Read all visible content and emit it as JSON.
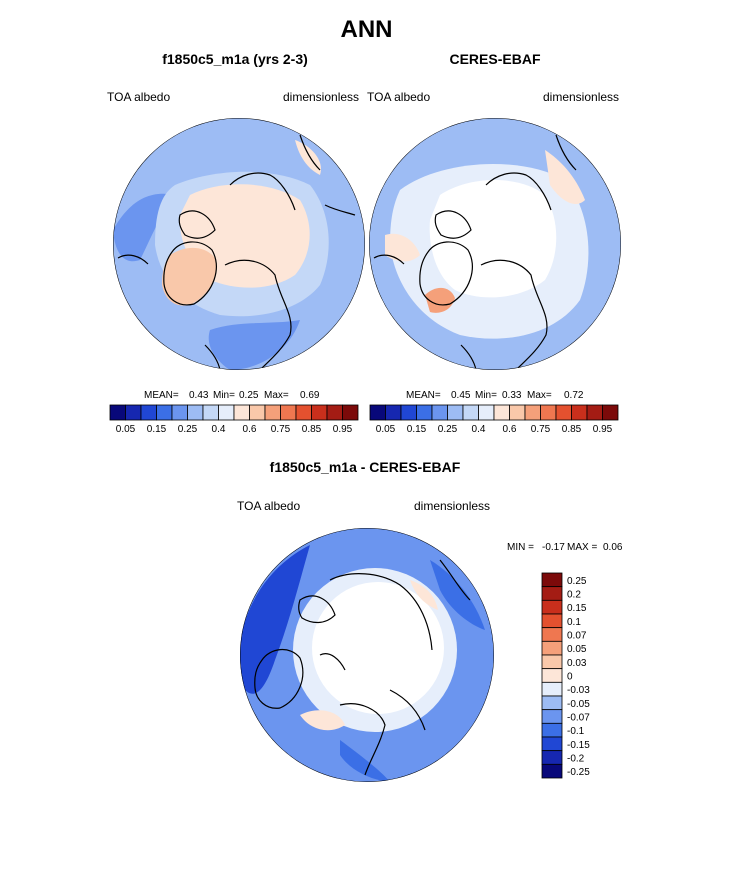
{
  "page": {
    "main_title": "ANN"
  },
  "chart_data": [
    {
      "type": "heatmap",
      "projection": "polar-stereographic",
      "title": "f1850c5_m1a (yrs 2-3)",
      "left_label": "TOA albedo",
      "right_label": "dimensionless",
      "stats": {
        "mean_label": "MEAN=",
        "mean": "0.43",
        "min_label": "Min=",
        "min": "0.25",
        "max_label": "Max=",
        "max": "0.69"
      },
      "colorbar": {
        "orientation": "horizontal",
        "tick_labels": [
          "0.05",
          "0.15",
          "0.25",
          "0.4",
          "0.6",
          "0.75",
          "0.85",
          "0.95"
        ],
        "colors": [
          "#08087a",
          "#1627b0",
          "#2047d4",
          "#3b6fe6",
          "#6b95ef",
          "#9dbcf4",
          "#c4d8f7",
          "#e6eefb",
          "#fde6d8",
          "#f9c8aa",
          "#f5a07a",
          "#ef7750",
          "#e4512f",
          "#c92f1c",
          "#a41c14",
          "#7c0a0a"
        ]
      },
      "field": {
        "ocean_color": "#9dbcf4",
        "arctic_color": "#fde6d8",
        "greenland_color": "#f9c8aa",
        "mid_color": "#c4d8f7"
      }
    },
    {
      "type": "heatmap",
      "projection": "polar-stereographic",
      "title": "CERES-EBAF",
      "left_label": "TOA albedo",
      "right_label": "dimensionless",
      "stats": {
        "mean_label": "MEAN=",
        "mean": "0.45",
        "min_label": "Min=",
        "min": "0.33",
        "max_label": "Max=",
        "max": "0.72"
      },
      "colorbar": {
        "orientation": "horizontal",
        "tick_labels": [
          "0.05",
          "0.15",
          "0.25",
          "0.4",
          "0.6",
          "0.75",
          "0.85",
          "0.95"
        ],
        "colors": [
          "#08087a",
          "#1627b0",
          "#2047d4",
          "#3b6fe6",
          "#6b95ef",
          "#9dbcf4",
          "#c4d8f7",
          "#e6eefb",
          "#fde6d8",
          "#f9c8aa",
          "#f5a07a",
          "#ef7750",
          "#e4512f",
          "#c92f1c",
          "#a41c14",
          "#7c0a0a"
        ]
      },
      "field": {
        "ocean_color": "#9dbcf4",
        "arctic_color": "#ffffff",
        "greenland_color": "#f5a07a",
        "mid_color": "#e6eefb"
      }
    },
    {
      "type": "heatmap",
      "projection": "polar-stereographic",
      "title": "f1850c5_m1a - CERES-EBAF",
      "left_label": "TOA albedo",
      "right_label": "dimensionless",
      "minmax": {
        "min_label": "MIN =",
        "min": "-0.17",
        "max_label": "MAX =",
        "max": "0.06"
      },
      "colorbar": {
        "orientation": "vertical",
        "tick_labels": [
          "0.25",
          "0.2",
          "0.15",
          "0.1",
          "0.07",
          "0.05",
          "0.03",
          "0",
          "-0.03",
          "-0.05",
          "-0.07",
          "-0.1",
          "-0.15",
          "-0.2",
          "-0.25"
        ],
        "colors": [
          "#7c0a0a",
          "#a41c14",
          "#c92f1c",
          "#e4512f",
          "#ef7750",
          "#f5a07a",
          "#f9c8aa",
          "#fde6d8",
          "#e6eefb",
          "#9dbcf4",
          "#6b95ef",
          "#3b6fe6",
          "#2047d4",
          "#1627b0",
          "#08087a"
        ]
      },
      "field": {
        "ocean_color": "#6b95ef",
        "arctic_color": "#ffffff",
        "ring_color": "#e6eefb",
        "dark_color": "#2047d4"
      }
    }
  ]
}
